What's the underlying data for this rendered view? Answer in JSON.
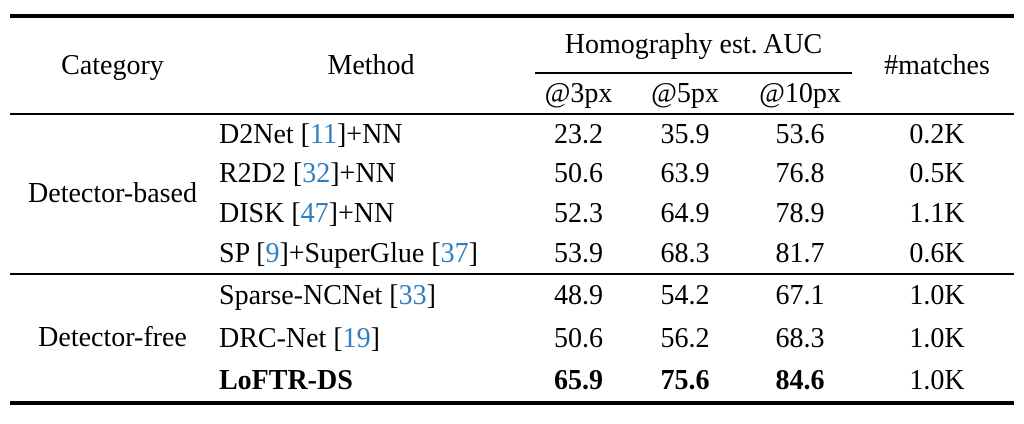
{
  "colors": {
    "text": "#000000",
    "cite": "#2e7fc4",
    "rule": "#000000",
    "background": "#ffffff"
  },
  "table": {
    "header": {
      "category": "Category",
      "method": "Method",
      "auc_group": "Homography est. AUC",
      "auc_subcols": [
        "@3px",
        "@5px",
        "@10px"
      ],
      "matches": "#matches"
    },
    "sections": [
      {
        "category": "Detector-based",
        "rows": [
          {
            "method_parts": [
              {
                "text": "D2Net [",
                "cite": false
              },
              {
                "text": "11",
                "cite": true
              },
              {
                "text": "]+NN",
                "cite": false
              }
            ],
            "auc": [
              "23.2",
              "35.9",
              "53.6"
            ],
            "matches": "0.2K",
            "bold": false
          },
          {
            "method_parts": [
              {
                "text": "R2D2 [",
                "cite": false
              },
              {
                "text": "32",
                "cite": true
              },
              {
                "text": "]+NN",
                "cite": false
              }
            ],
            "auc": [
              "50.6",
              "63.9",
              "76.8"
            ],
            "matches": "0.5K",
            "bold": false
          },
          {
            "method_parts": [
              {
                "text": "DISK [",
                "cite": false
              },
              {
                "text": "47",
                "cite": true
              },
              {
                "text": "]+NN",
                "cite": false
              }
            ],
            "auc": [
              "52.3",
              "64.9",
              "78.9"
            ],
            "matches": "1.1K",
            "bold": false
          },
          {
            "method_parts": [
              {
                "text": "SP [",
                "cite": false
              },
              {
                "text": "9",
                "cite": true
              },
              {
                "text": "]+SuperGlue [",
                "cite": false
              },
              {
                "text": "37",
                "cite": true
              },
              {
                "text": "]",
                "cite": false
              }
            ],
            "auc": [
              "53.9",
              "68.3",
              "81.7"
            ],
            "matches": "0.6K",
            "bold": false
          }
        ]
      },
      {
        "category": "Detector-free",
        "rows": [
          {
            "method_parts": [
              {
                "text": "Sparse-NCNet [",
                "cite": false
              },
              {
                "text": "33",
                "cite": true
              },
              {
                "text": "]",
                "cite": false
              }
            ],
            "auc": [
              "48.9",
              "54.2",
              "67.1"
            ],
            "matches": "1.0K",
            "bold": false
          },
          {
            "method_parts": [
              {
                "text": "DRC-Net [",
                "cite": false
              },
              {
                "text": "19",
                "cite": true
              },
              {
                "text": "]",
                "cite": false
              }
            ],
            "auc": [
              "50.6",
              "56.2",
              "68.3"
            ],
            "matches": "1.0K",
            "bold": false
          },
          {
            "method_parts": [
              {
                "text": "LoFTR-DS",
                "cite": false
              }
            ],
            "auc": [
              "65.9",
              "75.6",
              "84.6"
            ],
            "matches": "1.0K",
            "bold": true
          }
        ]
      }
    ]
  }
}
